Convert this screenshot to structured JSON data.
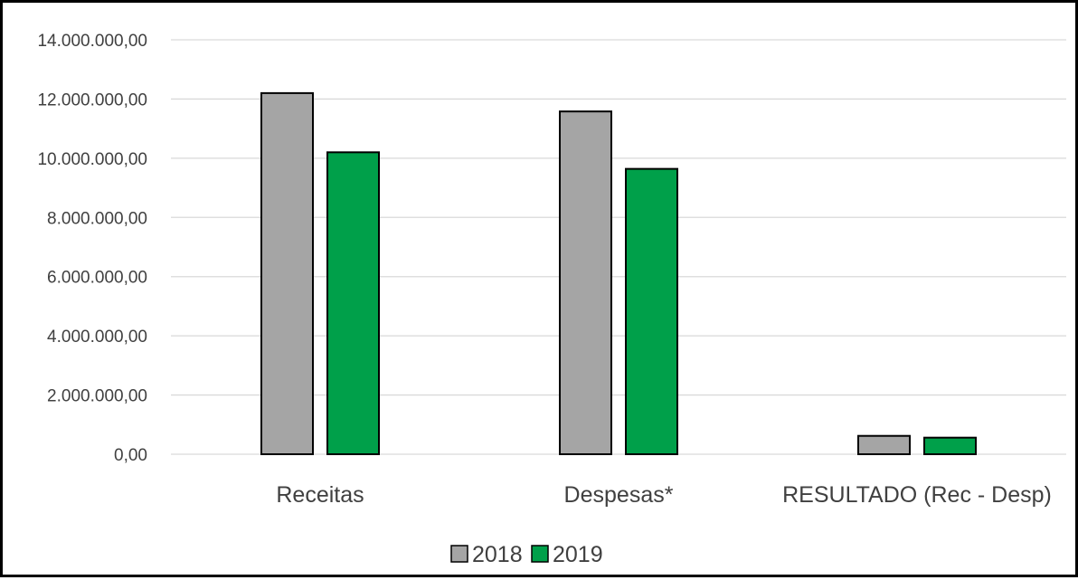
{
  "chart_data": {
    "type": "bar",
    "title": "",
    "xlabel": "",
    "ylabel": "",
    "categories": [
      "Receitas",
      "Despesas*",
      "RESULTADO (Rec - Desp)"
    ],
    "series": [
      {
        "name": "2018",
        "values": [
          12200000,
          11580000,
          620000
        ],
        "color": "#a5a5a5"
      },
      {
        "name": "2019",
        "values": [
          10200000,
          9640000,
          560000
        ],
        "color": "#00a04a"
      }
    ],
    "ylim": [
      0,
      14000000
    ],
    "yticks": [
      0,
      2000000,
      4000000,
      6000000,
      8000000,
      10000000,
      12000000,
      14000000
    ],
    "ytick_labels": [
      "0,00",
      "2.000.000,00",
      "4.000.000,00",
      "6.000.000,00",
      "8.000.000,00",
      "10.000.000,00",
      "12.000.000,00",
      "14.000.000,00"
    ],
    "grid": true,
    "legend_position": "bottom",
    "gridline_color": "#d9d9d9",
    "bar_outline_color": "#000000"
  }
}
